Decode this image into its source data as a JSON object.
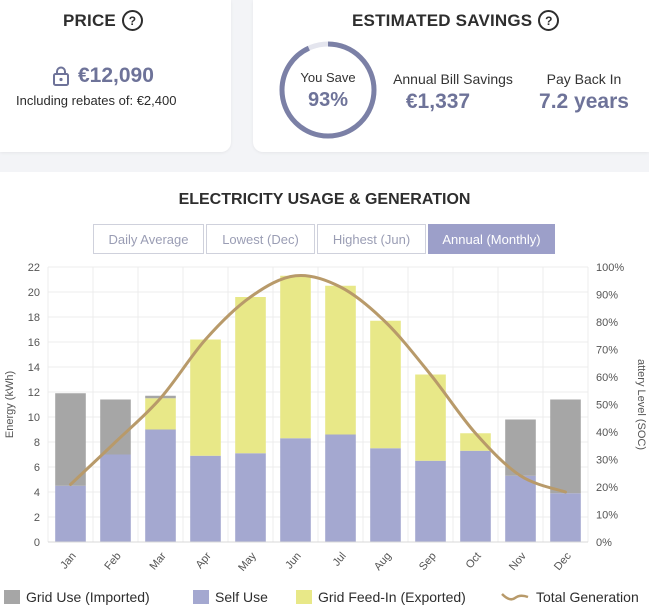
{
  "price": {
    "title": "PRICE",
    "help_icon": "?",
    "lock_icon": "lock-icon",
    "amount": "€12,090",
    "rebate_note": "Including rebates of: €2,400"
  },
  "savings": {
    "title": "ESTIMATED SAVINGS",
    "help_icon": "?",
    "you_save_label": "You Save",
    "you_save_value": "93%",
    "you_save_fraction": 0.93,
    "bill_savings_label": "Annual Bill Savings",
    "bill_savings_value": "€1,337",
    "payback_label": "Pay Back In",
    "payback_value": "7.2 years"
  },
  "chart_section": {
    "title": "ELECTRICITY USAGE & GENERATION",
    "tabs": [
      {
        "label": "Daily Average",
        "active": false
      },
      {
        "label": "Lowest (Dec)",
        "active": false
      },
      {
        "label": "Highest (Jun)",
        "active": false
      },
      {
        "label": "Annual (Monthly)",
        "active": true
      }
    ]
  },
  "chart_data": {
    "type": "bar",
    "stacked": true,
    "categories": [
      "Jan",
      "Feb",
      "Mar",
      "Apr",
      "May",
      "Jun",
      "Jul",
      "Aug",
      "Sep",
      "Oct",
      "Nov",
      "Dec"
    ],
    "ylabel": "Energy (kWh)",
    "ylabel_right": "attery Level (SOC)",
    "ylim": [
      0,
      22
    ],
    "yticks": [
      0,
      2,
      4,
      6,
      8,
      10,
      12,
      14,
      16,
      18,
      20,
      22
    ],
    "y2ticks": [
      "0%",
      "10%",
      "20%",
      "30%",
      "40%",
      "50%",
      "60%",
      "70%",
      "80%",
      "90%",
      "100%"
    ],
    "grid": true,
    "series": [
      {
        "name": "Self Use",
        "color": "#a4a8d0",
        "values": [
          4.5,
          7.0,
          9.0,
          6.9,
          7.1,
          8.3,
          8.6,
          7.5,
          6.5,
          7.3,
          5.3,
          3.9
        ]
      },
      {
        "name": "Grid Feed-In (Exported)",
        "color": "#e8e888",
        "values": [
          0,
          0,
          2.5,
          9.3,
          12.5,
          13.0,
          11.9,
          10.2,
          6.9,
          1.4,
          0,
          0
        ]
      },
      {
        "name": "Grid Use (Imported)",
        "color": "#a6a6a6",
        "values": [
          7.4,
          4.4,
          0.2,
          0,
          0,
          0,
          0,
          0,
          0,
          0,
          4.5,
          7.5
        ]
      }
    ],
    "line": {
      "name": "Total Generation",
      "color": "#b89a6a",
      "values": [
        4.6,
        8.0,
        11.5,
        16.2,
        19.6,
        21.3,
        20.4,
        17.6,
        13.4,
        8.7,
        5.3,
        4.0
      ]
    },
    "legend": [
      {
        "label": "Grid Use (Imported)",
        "color": "#a6a6a6",
        "kind": "box"
      },
      {
        "label": "Self Use",
        "color": "#a4a8d0",
        "kind": "box"
      },
      {
        "label": "Grid Feed-In (Exported)",
        "color": "#e8e888",
        "kind": "box"
      },
      {
        "label": "Total Generation",
        "color": "#b89a6a",
        "kind": "line"
      }
    ]
  }
}
